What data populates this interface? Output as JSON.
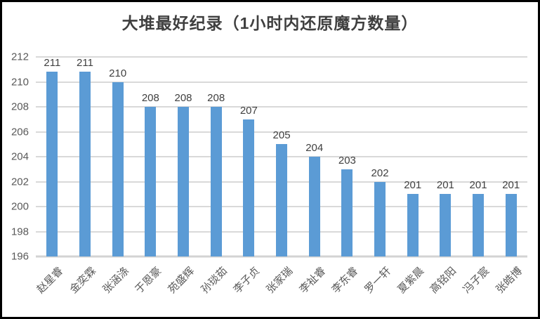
{
  "chart_data": {
    "type": "bar",
    "title": "大堆最好纪录（1小时内还原魔方数量）",
    "categories": [
      "赵星睿",
      "金奕霖",
      "张涵涤",
      "于恩豪",
      "苑盛辉",
      "孙琰茹",
      "李子贞",
      "张家瑞",
      "李祉睿",
      "李东睿",
      "罗一轩",
      "夏紫晨",
      "高铭阳",
      "冯子宸",
      "张皓博"
    ],
    "values": [
      211,
      211,
      210,
      208,
      208,
      208,
      207,
      205,
      204,
      203,
      202,
      201,
      201,
      201,
      201
    ],
    "xlabel": "",
    "ylabel": "",
    "ylim": [
      196,
      212
    ],
    "ytick_step": 2,
    "yticks": [
      212,
      210,
      208,
      206,
      204,
      202,
      200,
      198,
      196
    ],
    "grid": true,
    "legend_position": "none",
    "data_labels": true,
    "colors": {
      "bar": "#5B9BD5",
      "gridline": "#D9D9D9",
      "axis_line": "#D3D3D3",
      "title_text": "#3f3f3f",
      "data_label_text": "#404040",
      "tick_text": "#595959",
      "frame_border": "#000000",
      "background": "#ffffff"
    }
  }
}
